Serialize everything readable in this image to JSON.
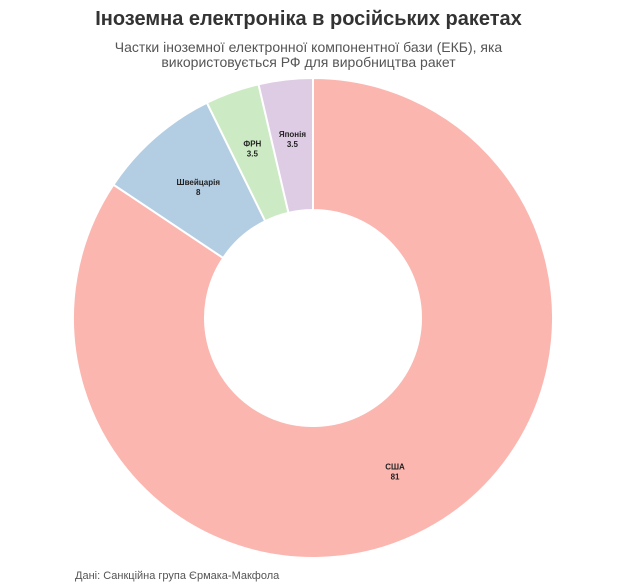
{
  "chart_data": {
    "type": "pie",
    "variant": "donut",
    "title": "Іноземна електроніка в російських ракетах",
    "subtitle": "Частки іноземної електронної компонентної бази (ЕКБ), яка використовується РФ для виробництва ракет",
    "categories": [
      "США",
      "Швейцарія",
      "ФРН",
      "Японія"
    ],
    "values": [
      81,
      8,
      3.5,
      3.5
    ],
    "colors": [
      "#fbb6b0",
      "#b3cde3",
      "#ccebc5",
      "#decbe4"
    ],
    "value_labels": [
      "81",
      "8",
      "3.5",
      "3.5"
    ],
    "legend": "none"
  },
  "source": "Дані: Санкційна група Єрмака-Макфола"
}
